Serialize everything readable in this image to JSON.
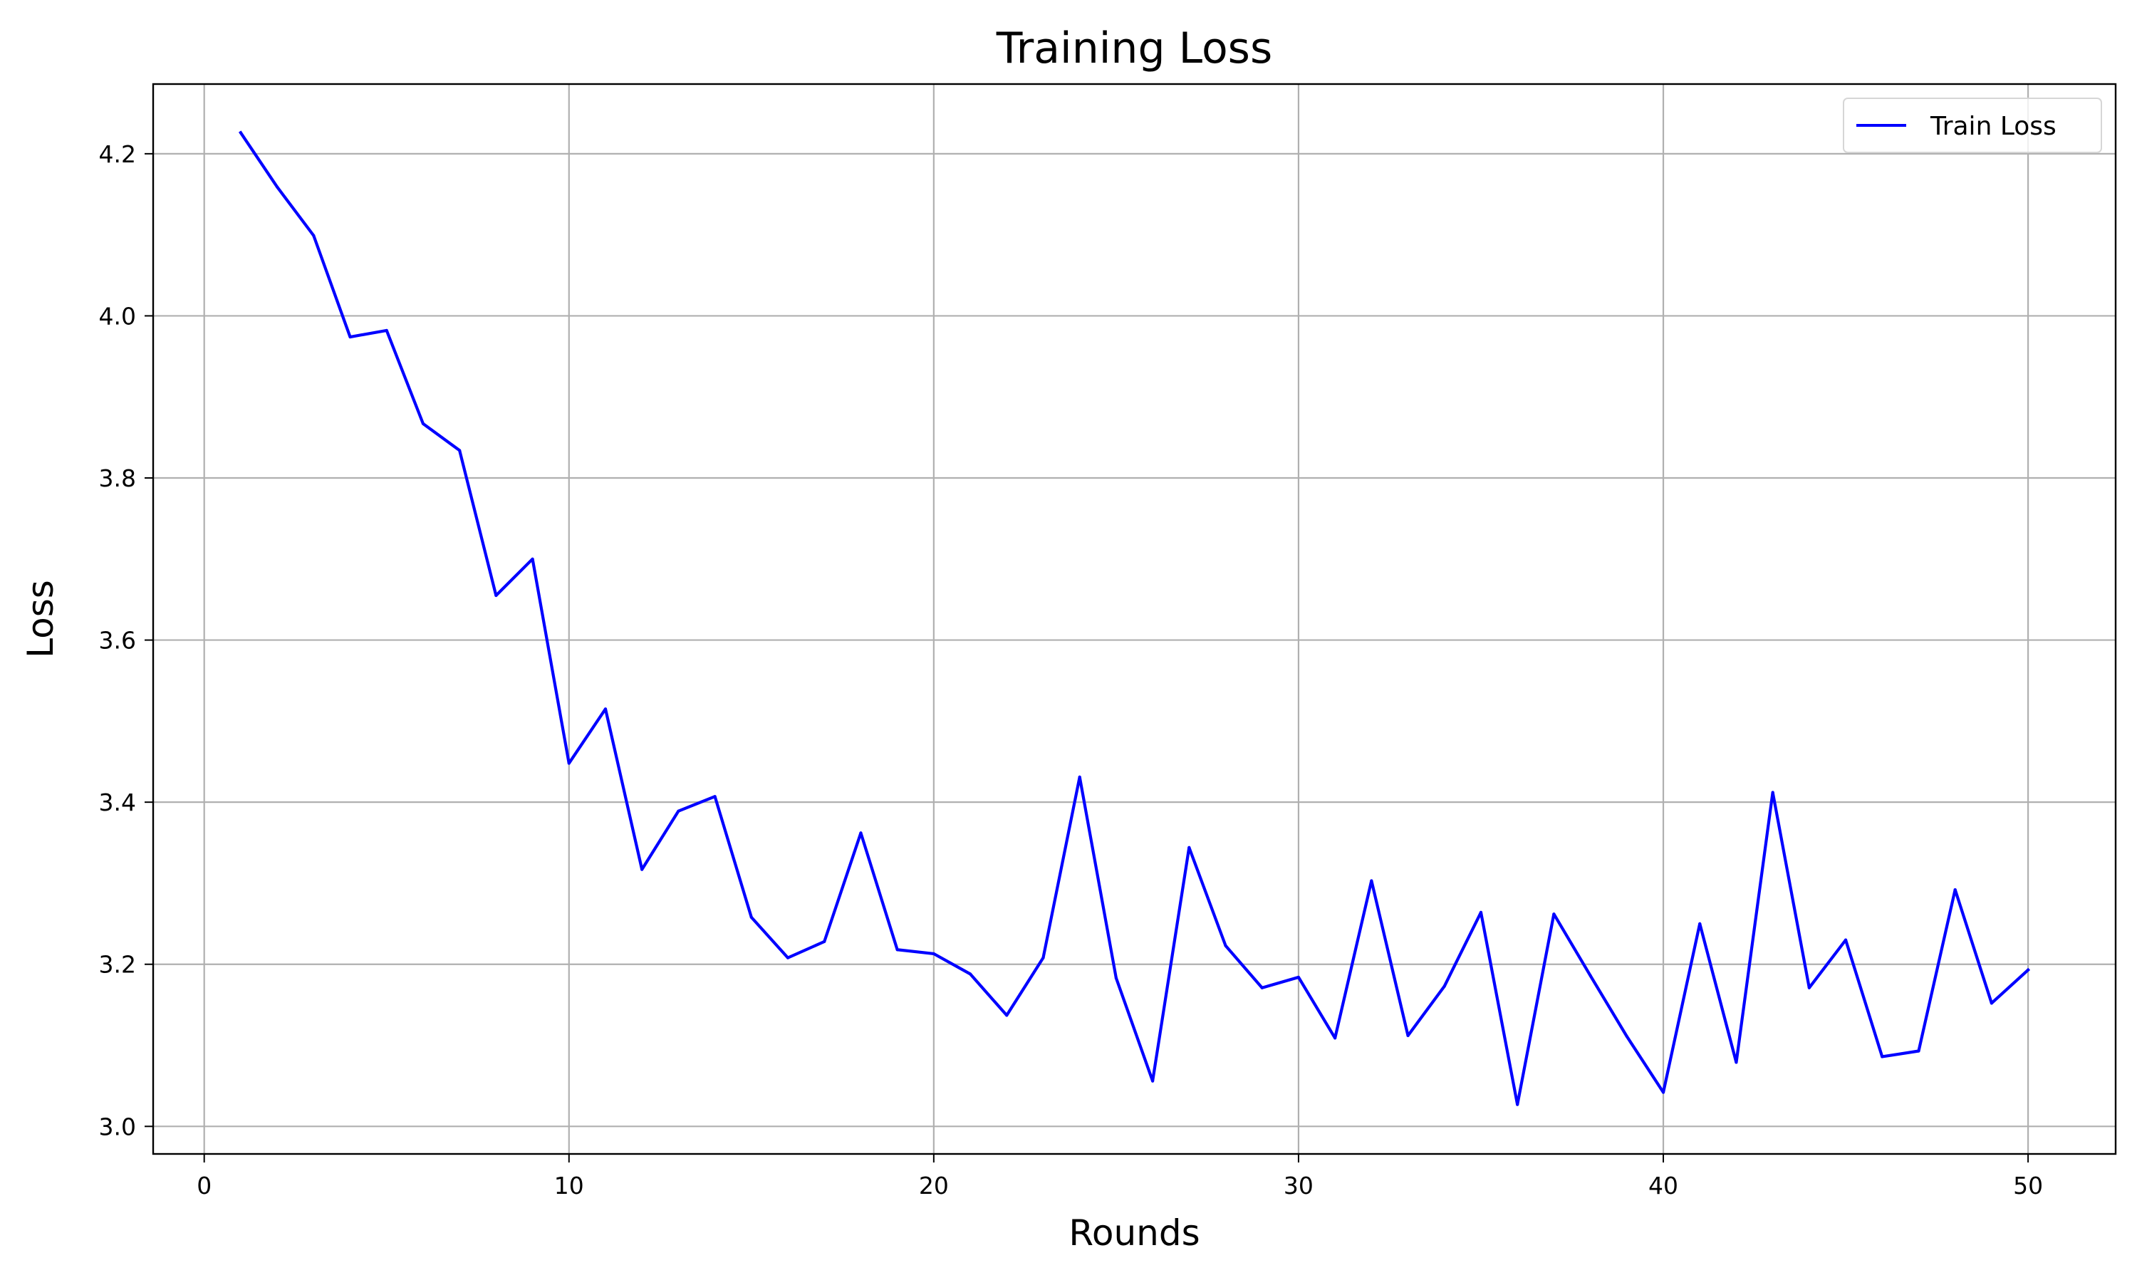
{
  "chart_data": {
    "type": "line",
    "title": "Training Loss",
    "xlabel": "Rounds",
    "ylabel": "Loss",
    "xlim": [
      -1.4,
      52.4
    ],
    "ylim": [
      2.966,
      4.286
    ],
    "xticks": [
      0,
      10,
      20,
      30,
      40,
      50
    ],
    "yticks": [
      3.0,
      3.2,
      3.4,
      3.6,
      3.8,
      4.0,
      4.2
    ],
    "xtick_labels": [
      "0",
      "10",
      "20",
      "30",
      "40",
      "50"
    ],
    "ytick_labels": [
      "3.0",
      "3.2",
      "3.4",
      "3.6",
      "3.8",
      "4.0",
      "4.2"
    ],
    "grid": true,
    "legend_position": "top-right",
    "series": [
      {
        "name": "Train Loss",
        "color": "#0000ff",
        "x": [
          1,
          2,
          3,
          4,
          5,
          6,
          7,
          8,
          9,
          10,
          11,
          12,
          13,
          14,
          15,
          16,
          17,
          18,
          19,
          20,
          21,
          22,
          23,
          24,
          25,
          26,
          27,
          28,
          29,
          30,
          31,
          32,
          33,
          34,
          35,
          36,
          37,
          38,
          39,
          40,
          41,
          42,
          43,
          44,
          45,
          46,
          47,
          48,
          49,
          50
        ],
        "y": [
          4.226,
          4.159,
          4.099,
          3.974,
          3.982,
          3.867,
          3.834,
          3.655,
          3.7,
          3.448,
          3.515,
          3.317,
          3.389,
          3.407,
          3.258,
          3.208,
          3.228,
          3.362,
          3.218,
          3.213,
          3.188,
          3.137,
          3.208,
          3.431,
          3.183,
          3.056,
          3.344,
          3.223,
          3.171,
          3.184,
          3.109,
          3.303,
          3.112,
          3.173,
          3.264,
          3.027,
          3.262,
          3.186,
          3.111,
          3.042,
          3.25,
          3.079,
          3.412,
          3.171,
          3.23,
          3.086,
          3.093,
          3.292,
          3.152,
          3.193
        ]
      }
    ]
  }
}
